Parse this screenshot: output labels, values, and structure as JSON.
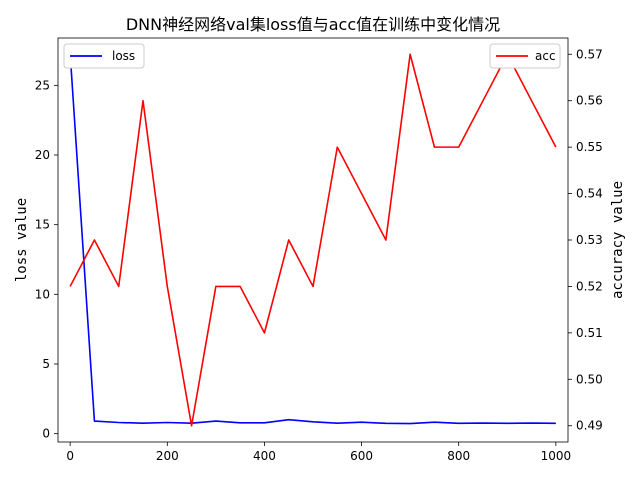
{
  "chart_data": {
    "type": "line",
    "title": "DNN神经网络val集loss值与acc值在训练中变化情况",
    "xlabel": "",
    "ylabel_left": "loss value",
    "ylabel_right": "accuracy value",
    "x": [
      0,
      50,
      100,
      150,
      200,
      250,
      300,
      350,
      400,
      450,
      500,
      550,
      600,
      650,
      700,
      750,
      800,
      850,
      900,
      950,
      1000
    ],
    "xlim": [
      -25,
      1025
    ],
    "ylim_left": [
      -0.6,
      28.4
    ],
    "ylim_right": [
      0.4865,
      0.5735
    ],
    "xticks": [
      0,
      200,
      400,
      600,
      800,
      1000
    ],
    "yticks_left": [
      0,
      5,
      10,
      15,
      20,
      25
    ],
    "yticks_right": [
      0.49,
      0.5,
      0.51,
      0.52,
      0.53,
      0.54,
      0.55,
      0.56,
      0.57
    ],
    "series": [
      {
        "name": "loss",
        "axis": "left",
        "color": "#0000ff",
        "values": [
          27.3,
          0.9,
          0.8,
          0.75,
          0.8,
          0.75,
          0.9,
          0.78,
          0.78,
          1.0,
          0.85,
          0.75,
          0.82,
          0.74,
          0.72,
          0.82,
          0.74,
          0.76,
          0.74,
          0.76,
          0.74
        ]
      },
      {
        "name": "acc",
        "axis": "right",
        "color": "#ff0000",
        "values": [
          0.52,
          0.53,
          0.52,
          0.56,
          0.52,
          0.49,
          0.52,
          0.52,
          0.51,
          0.53,
          0.52,
          0.55,
          0.54,
          0.53,
          0.57,
          0.55,
          0.55,
          0.56,
          0.57,
          0.56,
          0.55
        ]
      }
    ],
    "legend_left": "upper-left",
    "legend_right": "upper-right",
    "grid": false
  }
}
